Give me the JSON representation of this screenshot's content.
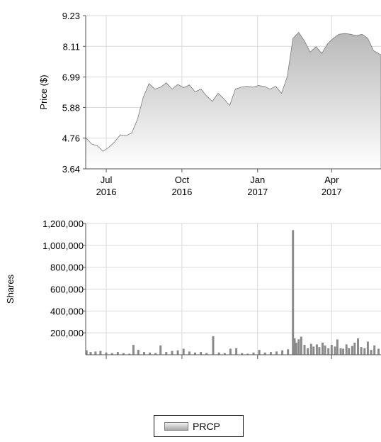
{
  "chart_data": [
    {
      "type": "area",
      "ylabel": "Price ($)",
      "ylim": [
        3.64,
        9.23
      ],
      "yticks": [
        "9.23",
        "8.11",
        "6.99",
        "5.88",
        "4.76",
        "3.64"
      ],
      "xticks": [
        {
          "month": "Jul",
          "year": "2016"
        },
        {
          "month": "Oct",
          "year": "2016"
        },
        {
          "month": "Jan",
          "year": "2017"
        },
        {
          "month": "Apr",
          "year": "2017"
        }
      ],
      "x_range": [
        "2016-06-06",
        "2017-05-31"
      ],
      "grid": true,
      "series": [
        {
          "name": "PRCP",
          "points": [
            [
              "2016-06-06",
              4.78
            ],
            [
              "2016-06-13",
              4.55
            ],
            [
              "2016-06-20",
              4.48
            ],
            [
              "2016-06-27",
              4.28
            ],
            [
              "2016-07-04",
              4.42
            ],
            [
              "2016-07-11",
              4.62
            ],
            [
              "2016-07-18",
              4.88
            ],
            [
              "2016-07-25",
              4.85
            ],
            [
              "2016-08-01",
              4.95
            ],
            [
              "2016-08-08",
              5.45
            ],
            [
              "2016-08-15",
              6.25
            ],
            [
              "2016-08-22",
              6.75
            ],
            [
              "2016-08-29",
              6.55
            ],
            [
              "2016-09-05",
              6.62
            ],
            [
              "2016-09-12",
              6.78
            ],
            [
              "2016-09-19",
              6.55
            ],
            [
              "2016-09-26",
              6.72
            ],
            [
              "2016-10-03",
              6.6
            ],
            [
              "2016-10-10",
              6.7
            ],
            [
              "2016-10-17",
              6.45
            ],
            [
              "2016-10-24",
              6.55
            ],
            [
              "2016-10-31",
              6.3
            ],
            [
              "2016-11-07",
              6.1
            ],
            [
              "2016-11-14",
              6.4
            ],
            [
              "2016-11-21",
              6.2
            ],
            [
              "2016-11-28",
              5.95
            ],
            [
              "2016-12-05",
              6.55
            ],
            [
              "2016-12-12",
              6.62
            ],
            [
              "2016-12-19",
              6.65
            ],
            [
              "2016-12-26",
              6.62
            ],
            [
              "2017-01-02",
              6.68
            ],
            [
              "2017-01-09",
              6.65
            ],
            [
              "2017-01-16",
              6.55
            ],
            [
              "2017-01-23",
              6.65
            ],
            [
              "2017-01-30",
              6.4
            ],
            [
              "2017-02-06",
              7.0
            ],
            [
              "2017-02-13",
              8.4
            ],
            [
              "2017-02-20",
              8.62
            ],
            [
              "2017-02-27",
              8.3
            ],
            [
              "2017-03-06",
              7.9
            ],
            [
              "2017-03-13",
              8.1
            ],
            [
              "2017-03-20",
              7.85
            ],
            [
              "2017-03-27",
              8.2
            ],
            [
              "2017-04-03",
              8.4
            ],
            [
              "2017-04-10",
              8.55
            ],
            [
              "2017-04-17",
              8.58
            ],
            [
              "2017-04-24",
              8.55
            ],
            [
              "2017-05-01",
              8.5
            ],
            [
              "2017-05-08",
              8.55
            ],
            [
              "2017-05-15",
              8.4
            ],
            [
              "2017-05-22",
              7.95
            ],
            [
              "2017-05-31",
              7.8
            ]
          ]
        }
      ]
    },
    {
      "type": "bar",
      "ylabel": "Shares",
      "ylim": [
        0,
        1200000
      ],
      "yticks": [
        "1,200,000",
        "1,000,000",
        "800,000",
        "600,000",
        "400,000",
        "200,000"
      ],
      "grid": true,
      "series": [
        {
          "name": "PRCP",
          "points": [
            [
              "2016-06-07",
              40000
            ],
            [
              "2016-06-12",
              25000
            ],
            [
              "2016-06-18",
              30000
            ],
            [
              "2016-06-24",
              35000
            ],
            [
              "2016-07-01",
              20000
            ],
            [
              "2016-07-08",
              15000
            ],
            [
              "2016-07-15",
              25000
            ],
            [
              "2016-07-22",
              15000
            ],
            [
              "2016-07-29",
              10000
            ],
            [
              "2016-08-03",
              90000
            ],
            [
              "2016-08-09",
              45000
            ],
            [
              "2016-08-16",
              25000
            ],
            [
              "2016-08-23",
              20000
            ],
            [
              "2016-08-30",
              15000
            ],
            [
              "2016-09-05",
              85000
            ],
            [
              "2016-09-12",
              25000
            ],
            [
              "2016-09-19",
              35000
            ],
            [
              "2016-09-26",
              40000
            ],
            [
              "2016-10-03",
              55000
            ],
            [
              "2016-10-10",
              30000
            ],
            [
              "2016-10-17",
              20000
            ],
            [
              "2016-10-24",
              25000
            ],
            [
              "2016-10-31",
              15000
            ],
            [
              "2016-11-08",
              170000
            ],
            [
              "2016-11-15",
              20000
            ],
            [
              "2016-11-22",
              15000
            ],
            [
              "2016-11-29",
              55000
            ],
            [
              "2016-12-06",
              60000
            ],
            [
              "2016-12-13",
              15000
            ],
            [
              "2016-12-20",
              10000
            ],
            [
              "2016-12-27",
              20000
            ],
            [
              "2017-01-03",
              45000
            ],
            [
              "2017-01-10",
              20000
            ],
            [
              "2017-01-17",
              25000
            ],
            [
              "2017-01-24",
              30000
            ],
            [
              "2017-01-31",
              40000
            ],
            [
              "2017-02-07",
              50000
            ],
            [
              "2017-02-13",
              1140000
            ],
            [
              "2017-02-15",
              150000
            ],
            [
              "2017-02-17",
              110000
            ],
            [
              "2017-02-20",
              140000
            ],
            [
              "2017-02-23",
              165000
            ],
            [
              "2017-02-27",
              90000
            ],
            [
              "2017-03-03",
              60000
            ],
            [
              "2017-03-07",
              100000
            ],
            [
              "2017-03-10",
              75000
            ],
            [
              "2017-03-14",
              95000
            ],
            [
              "2017-03-17",
              70000
            ],
            [
              "2017-03-21",
              110000
            ],
            [
              "2017-03-24",
              85000
            ],
            [
              "2017-03-28",
              60000
            ],
            [
              "2017-04-01",
              90000
            ],
            [
              "2017-04-05",
              75000
            ],
            [
              "2017-04-08",
              140000
            ],
            [
              "2017-04-12",
              60000
            ],
            [
              "2017-04-15",
              55000
            ],
            [
              "2017-04-19",
              95000
            ],
            [
              "2017-04-22",
              60000
            ],
            [
              "2017-04-26",
              80000
            ],
            [
              "2017-04-29",
              110000
            ],
            [
              "2017-05-03",
              150000
            ],
            [
              "2017-05-07",
              70000
            ],
            [
              "2017-05-11",
              60000
            ],
            [
              "2017-05-15",
              120000
            ],
            [
              "2017-05-19",
              45000
            ],
            [
              "2017-05-23",
              85000
            ],
            [
              "2017-05-28",
              55000
            ]
          ]
        }
      ]
    }
  ],
  "legend": {
    "label": "PRCP"
  },
  "colors": {
    "area_top": "#b8b8b8",
    "area_bottom": "#ffffff",
    "bar": "#8a8a8a",
    "grid": "#d9d9d9",
    "axis": "#555555"
  }
}
